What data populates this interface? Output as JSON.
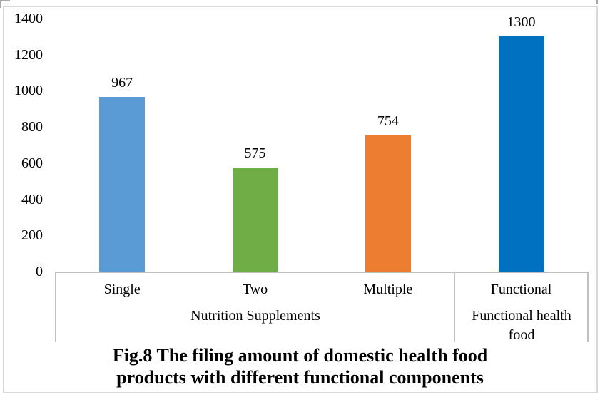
{
  "figure": {
    "caption_line1": "Fig.8 The filing amount of domestic health food",
    "caption_line2": "products with different functional components"
  },
  "chart_data": {
    "type": "bar",
    "title": "Fig.8 The filing amount of domestic health food products with different functional components",
    "categories": [
      "Single",
      "Two",
      "Multiple",
      "Functional"
    ],
    "values": [
      967,
      575,
      754,
      1300
    ],
    "bar_colors": [
      "#5B9BD5",
      "#70AD47",
      "#ED7D31",
      "#0070C0"
    ],
    "data_labels": [
      "967",
      "575",
      "754",
      "1300"
    ],
    "groups": [
      {
        "label": "Nutrition Supplements",
        "categories": [
          "Single",
          "Two",
          "Multiple"
        ]
      },
      {
        "label": "Functional health food",
        "categories": [
          "Functional"
        ]
      }
    ],
    "xlabel": "",
    "ylabel": "",
    "y_ticks": [
      0,
      200,
      400,
      600,
      800,
      1000,
      1200,
      1400
    ],
    "ylim": [
      0,
      1400
    ],
    "grid": false,
    "legend_position": "none",
    "axis_line_color": "#C0C0C0",
    "border_color": "#D8D8D8"
  }
}
